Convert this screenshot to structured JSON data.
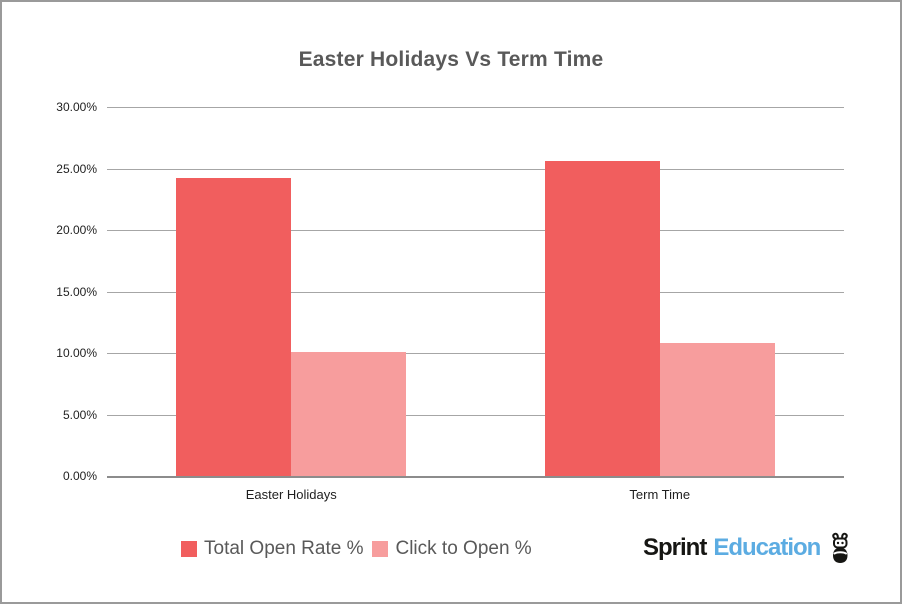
{
  "chart_data": {
    "type": "bar",
    "title": "Easter Holidays Vs Term Time",
    "categories": [
      "Easter Holidays",
      "Term Time"
    ],
    "series": [
      {
        "name": "Total Open Rate %",
        "color": "#f15e5e",
        "values": [
          24.2,
          25.6
        ]
      },
      {
        "name": "Click to Open %",
        "color": "#f79d9d",
        "values": [
          10.1,
          10.8
        ]
      }
    ],
    "ylim": [
      0,
      30
    ],
    "ytick_step": 5,
    "ytick_labels": [
      "0.00%",
      "5.00%",
      "10.00%",
      "15.00%",
      "20.00%",
      "25.00%",
      "30.00%"
    ],
    "grid": true,
    "legend_position": "bottom-left",
    "xlabel": "",
    "ylabel": ""
  },
  "branding": {
    "logo_text_primary": "Sprint",
    "logo_text_secondary": "Education",
    "logo_color_primary": "#161613",
    "logo_color_secondary": "#5cace2",
    "mascot_icon": "sprint-mascot-icon"
  },
  "colors": {
    "frame_border": "#9a9a9a",
    "title_text": "#595959",
    "legend_text": "#595959",
    "gridline": "#a6a6a6",
    "axis_line": "#8c8c8c",
    "tick_text": "#1f1f1f"
  }
}
